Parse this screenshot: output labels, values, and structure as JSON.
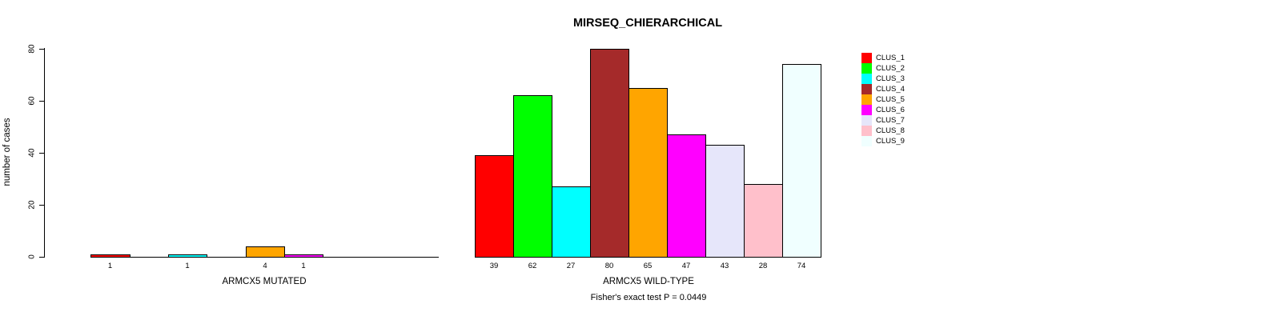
{
  "chart_data": {
    "type": "bar",
    "title": "MIRSEQ_CHIERARCHICAL",
    "ylabel": "number of cases",
    "xlabel": "",
    "ylim": [
      0,
      80
    ],
    "yticks": [
      0,
      20,
      40,
      60,
      80
    ],
    "grid": false,
    "legend_position": "right",
    "categories": [
      "ARMCX5 MUTATED",
      "ARMCX5 WILD-TYPE"
    ],
    "annotation": "Fisher's exact test P = 0.0449",
    "bar_value_labels": "shown under each non-zero bar",
    "series": [
      {
        "name": "CLUS_1",
        "color": "#FF0000",
        "values": [
          1,
          39
        ]
      },
      {
        "name": "CLUS_2",
        "color": "#00FF00",
        "values": [
          0,
          62
        ]
      },
      {
        "name": "CLUS_3",
        "color": "#00FFFF",
        "values": [
          1,
          27
        ]
      },
      {
        "name": "CLUS_4",
        "color": "#A52A2A",
        "values": [
          0,
          80
        ]
      },
      {
        "name": "CLUS_5",
        "color": "#FFA500",
        "values": [
          4,
          65
        ]
      },
      {
        "name": "CLUS_6",
        "color": "#FF00FF",
        "values": [
          1,
          47
        ]
      },
      {
        "name": "CLUS_7",
        "color": "#E6E6FA",
        "values": [
          0,
          43
        ]
      },
      {
        "name": "CLUS_8",
        "color": "#FFC0CB",
        "values": [
          0,
          28
        ]
      },
      {
        "name": "CLUS_9",
        "color": "#F0FFFF",
        "values": [
          0,
          74
        ]
      }
    ]
  }
}
